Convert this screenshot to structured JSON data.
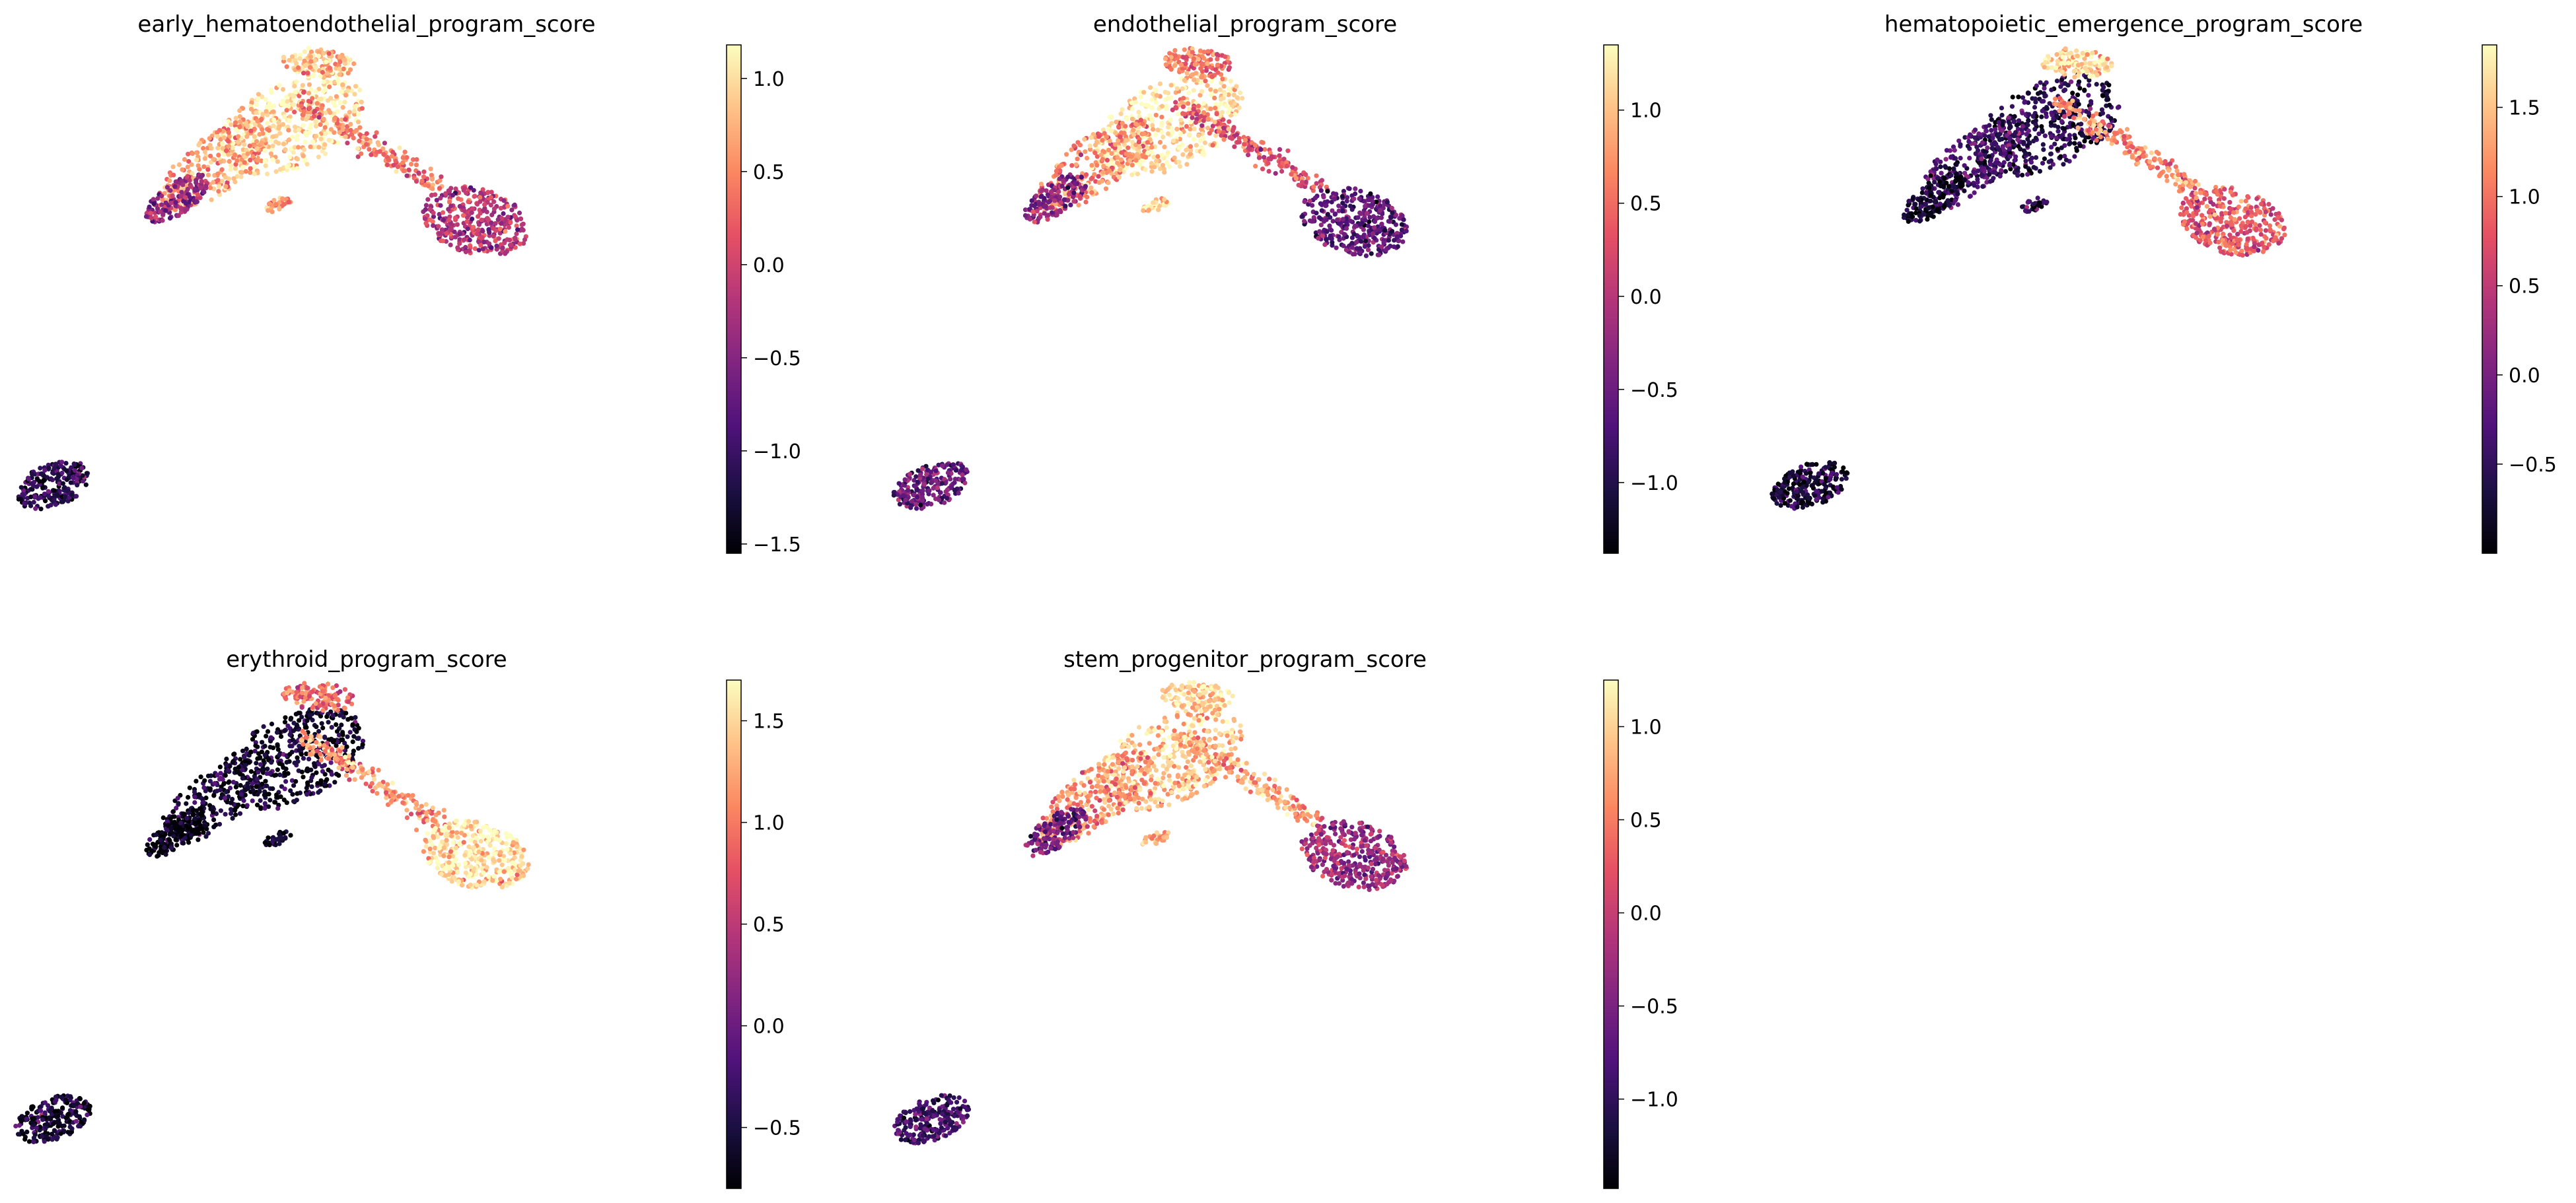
{
  "figure": {
    "type": "scatter",
    "colormap": "magma",
    "colormap_stops": [
      "#000004",
      "#1c1044",
      "#4f127b",
      "#812581",
      "#b5367a",
      "#e55064",
      "#fb8761",
      "#fec287",
      "#fcfdbf"
    ]
  },
  "chart_data": [
    {
      "type": "scatter",
      "title": "early_hematoendothelial_program_score",
      "colorbar": {
        "min": -1.55,
        "max": 1.18,
        "ticks": [
          -1.5,
          -1.0,
          -0.5,
          0.0,
          0.5,
          1.0
        ],
        "tick_labels": [
          "−1.5",
          "−1.0",
          "−0.5",
          "0.0",
          "0.5",
          "1.0"
        ]
      },
      "region_scores": {
        "upper_core": 1.0,
        "upper_left_arm": 0.6,
        "lower_left_edge": -0.4,
        "top_island": 0.8,
        "bridge": 0.4,
        "right_cluster": -0.2,
        "small_islet": 0.5,
        "outlier_cluster": -1.1
      }
    },
    {
      "type": "scatter",
      "title": "endothelial_program_score",
      "colorbar": {
        "min": -1.38,
        "max": 1.35,
        "ticks": [
          -1.0,
          -0.5,
          0.0,
          0.5,
          1.0
        ],
        "tick_labels": [
          "−1.0",
          "−0.5",
          "0.0",
          "0.5",
          "1.0"
        ]
      },
      "region_scores": {
        "upper_core": 1.15,
        "upper_left_arm": 0.7,
        "lower_left_edge": -0.3,
        "top_island": 0.6,
        "bridge": 0.3,
        "right_cluster": -0.6,
        "small_islet": 1.0,
        "outlier_cluster": -0.5
      }
    },
    {
      "type": "scatter",
      "title": "hematopoietic_emergence_program_score",
      "colorbar": {
        "min": -1.0,
        "max": 1.85,
        "ticks": [
          -0.5,
          0.0,
          0.5,
          1.0,
          1.5
        ],
        "tick_labels": [
          "−0.5",
          "0.0",
          "0.5",
          "1.0",
          "1.5"
        ]
      },
      "region_scores": {
        "upper_core": -0.6,
        "upper_left_arm": -0.3,
        "lower_left_edge": -0.8,
        "top_island": 1.6,
        "bridge": 1.1,
        "right_cluster": 0.8,
        "small_islet": -0.6,
        "outlier_cluster": -0.7
      }
    },
    {
      "type": "scatter",
      "title": "erythroid_program_score",
      "colorbar": {
        "min": -0.8,
        "max": 1.7,
        "ticks": [
          -0.5,
          0.0,
          0.5,
          1.0,
          1.5
        ],
        "tick_labels": [
          "−0.5",
          "0.0",
          "0.5",
          "1.0",
          "1.5"
        ]
      },
      "region_scores": {
        "upper_core": -0.65,
        "upper_left_arm": -0.6,
        "lower_left_edge": -0.75,
        "top_island": 0.9,
        "bridge": 1.1,
        "right_cluster": 1.55,
        "small_islet": -0.6,
        "outlier_cluster": -0.55
      }
    },
    {
      "type": "scatter",
      "title": "stem_progenitor_program_score",
      "colorbar": {
        "min": -1.48,
        "max": 1.25,
        "ticks": [
          -1.0,
          -0.5,
          0.0,
          0.5,
          1.0
        ],
        "tick_labels": [
          "−1.0",
          "−0.5",
          "0.0",
          "0.5",
          "1.0"
        ]
      },
      "region_scores": {
        "upper_core": 0.9,
        "upper_left_arm": 0.6,
        "lower_left_edge": -0.6,
        "top_island": 1.0,
        "bridge": 0.7,
        "right_cluster": -0.3,
        "small_islet": 0.8,
        "outlier_cluster": -0.9
      }
    }
  ]
}
